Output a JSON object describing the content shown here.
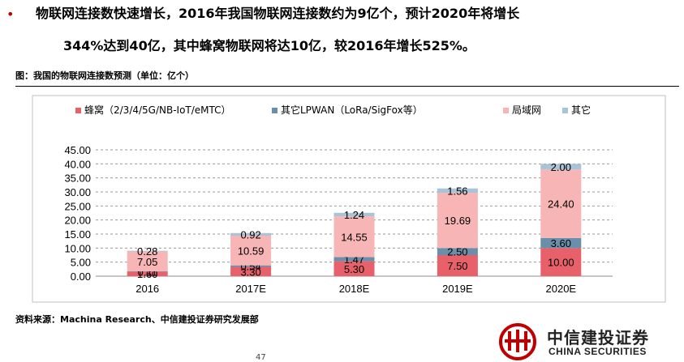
{
  "bullet": {
    "line1": "物联网连接数快速增长，2016年我国物联网连接数约为9亿个，预计2020年将增长",
    "line2": "344%达到40亿，其中蜂窝物联网将达10亿，较2016年增长525%。"
  },
  "figure_caption": "图：我国的物联网连接数预测（单位：亿个）",
  "source": "资料来源：Machina Research、中信建投证券研究发展部",
  "page_number": "47",
  "logo": {
    "cn": "中信建投证券",
    "en": "CHINA SECURITIES",
    "icon": "citic-logo-icon"
  },
  "colors": {
    "accent": "#c00000"
  },
  "chart_data": {
    "type": "bar",
    "stacked": true,
    "categories": [
      "2016",
      "2017E",
      "2018E",
      "2019E",
      "2020E"
    ],
    "series": [
      {
        "name": "蜂窝（2/3/4/5G/NB-IoT/eMTC）",
        "color": "#e8606a",
        "values": [
          1.6,
          3.3,
          5.3,
          7.5,
          10.0
        ]
      },
      {
        "name": "其它LPWAN（LoRa/SigFox等）",
        "color": "#6a8fab",
        "values": [
          0.11,
          0.54,
          1.47,
          2.5,
          3.6
        ]
      },
      {
        "name": "局域网",
        "color": "#f7b5b5",
        "values": [
          7.05,
          10.59,
          14.55,
          19.69,
          24.4
        ]
      },
      {
        "name": "其它",
        "color": "#a9c4d6",
        "values": [
          0.28,
          0.92,
          1.24,
          1.56,
          2.0
        ]
      }
    ],
    "ylim": [
      0,
      45
    ],
    "yticks": [
      "0.00",
      "5.00",
      "10.00",
      "15.00",
      "20.00",
      "25.00",
      "30.00",
      "35.00",
      "40.00",
      "45.00"
    ],
    "grid": true,
    "legend_position": "top",
    "xlabel": "",
    "ylabel": ""
  }
}
